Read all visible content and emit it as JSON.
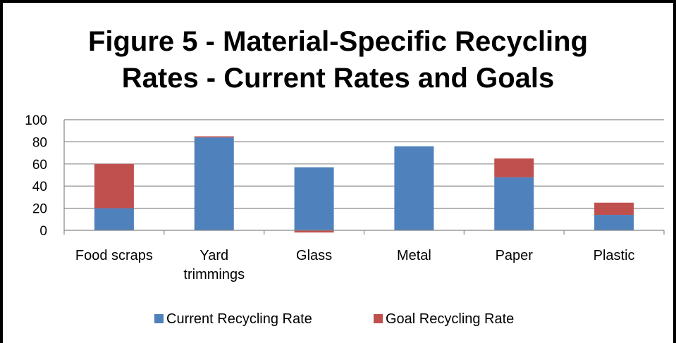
{
  "chart_data": {
    "type": "bar",
    "stacked": true,
    "title_lines": [
      "Figure 5 - Material-Specific Recycling",
      "Rates - Current Rates and Goals"
    ],
    "categories": [
      [
        "Food scraps"
      ],
      [
        "Yard",
        "trimmings"
      ],
      [
        "Glass"
      ],
      [
        "Metal"
      ],
      [
        "Paper"
      ],
      [
        "Plastic"
      ]
    ],
    "series": [
      {
        "name": "Current Recycling Rate",
        "color": "#4f81bd",
        "values": [
          20,
          84,
          57,
          76,
          48,
          14
        ]
      },
      {
        "name": "Goal Recycling Rate",
        "color": "#c0504d",
        "values": [
          40,
          1,
          -2,
          0,
          17,
          11
        ]
      }
    ],
    "ylim": [
      0,
      100
    ],
    "yticks": [
      0,
      20,
      40,
      60,
      80,
      100
    ],
    "grid": true,
    "legend_position": "bottom"
  }
}
